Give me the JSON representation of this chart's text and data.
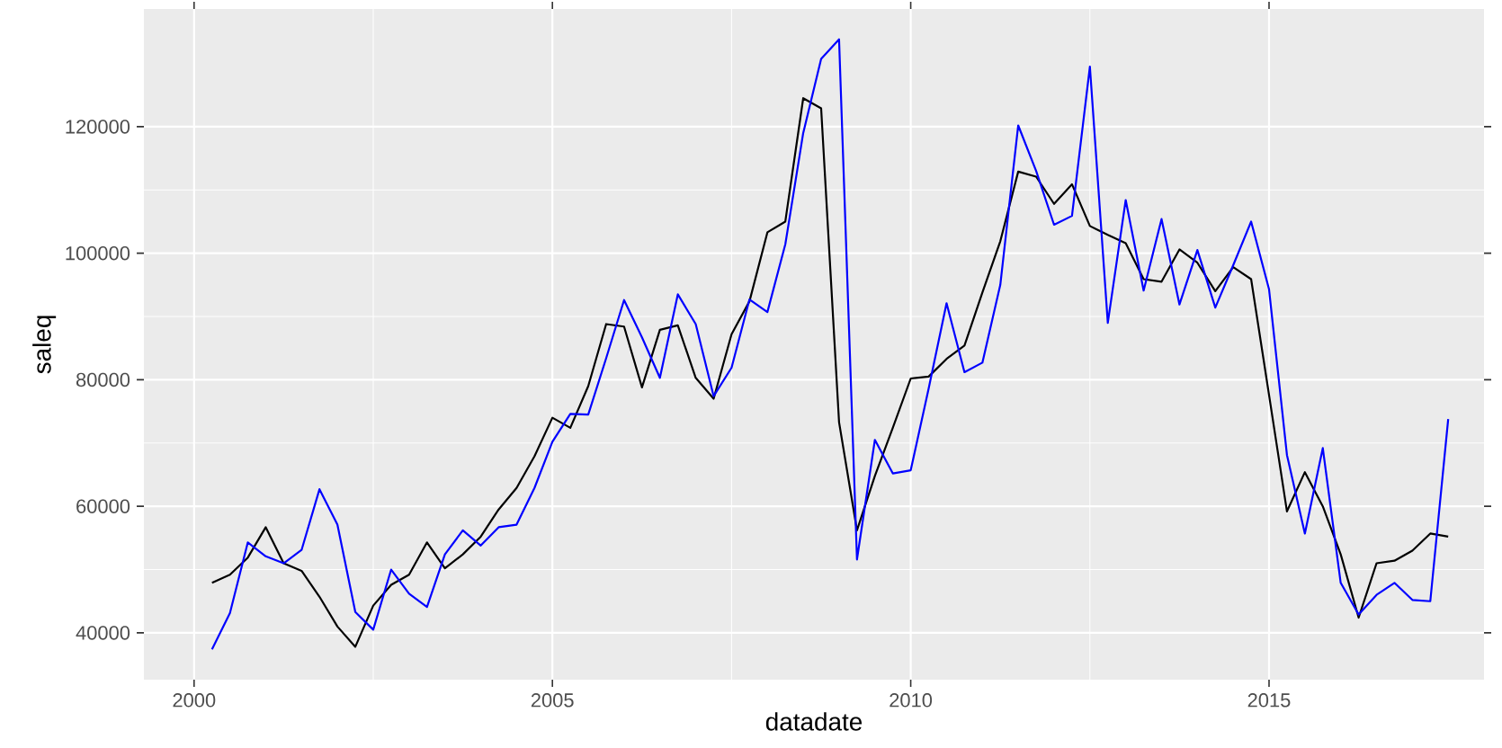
{
  "chart_data": {
    "type": "line",
    "xlabel": "datadate",
    "ylabel": "saleq",
    "x": [
      2000.25,
      2000.5,
      2000.75,
      2001,
      2001.25,
      2001.5,
      2001.75,
      2002,
      2002.25,
      2002.5,
      2002.75,
      2003,
      2003.25,
      2003.5,
      2003.75,
      2004,
      2004.25,
      2004.5,
      2004.75,
      2005,
      2005.25,
      2005.5,
      2005.75,
      2006,
      2006.25,
      2006.5,
      2006.75,
      2007,
      2007.25,
      2007.5,
      2007.75,
      2008,
      2008.25,
      2008.5,
      2008.75,
      2009,
      2009.25,
      2009.5,
      2009.75,
      2010,
      2010.25,
      2010.5,
      2010.75,
      2011,
      2011.25,
      2011.5,
      2011.75,
      2012,
      2012.25,
      2012.5,
      2012.75,
      2013,
      2013.25,
      2013.5,
      2013.75,
      2014,
      2014.25,
      2014.5,
      2014.75,
      2015,
      2015.25,
      2015.5,
      2015.75,
      2016,
      2016.25,
      2016.5,
      2016.75,
      2017,
      2017.25,
      2017.5
    ],
    "series": [
      {
        "color": "#000000",
        "values": [
          47900,
          49200,
          51900,
          56700,
          51000,
          49800,
          45700,
          41000,
          37800,
          44300,
          47600,
          49200,
          54300,
          50200,
          52400,
          55200,
          59500,
          62900,
          67900,
          74000,
          72400,
          79000,
          88800,
          88400,
          78800,
          87900,
          88600,
          80300,
          77000,
          87200,
          92400,
          103300,
          105000,
          124500,
          122900,
          73300,
          56200,
          64800,
          72400,
          80200,
          80500,
          83300,
          85400,
          93800,
          101900,
          112900,
          112100,
          107800,
          110900,
          104300,
          102900,
          101600,
          95900,
          95500,
          100600,
          98500,
          94000,
          97800,
          95900,
          77600,
          59200,
          65400,
          60000,
          52400,
          42400,
          51000,
          51400,
          53000,
          55700,
          55200
        ]
      },
      {
        "color": "#0000ff",
        "values": [
          37400,
          43100,
          54300,
          52100,
          51000,
          53100,
          62700,
          57100,
          43300,
          40500,
          50000,
          46200,
          44100,
          52400,
          56200,
          53800,
          56700,
          57100,
          62900,
          70200,
          74600,
          74500,
          83400,
          92600,
          86700,
          80300,
          93500,
          88800,
          77400,
          81900,
          92700,
          90700,
          101400,
          119000,
          130700,
          133800,
          51600,
          70500,
          65200,
          65700,
          78600,
          92100,
          81200,
          82700,
          95000,
          120200,
          113000,
          104500,
          105900,
          129500,
          89000,
          108400,
          94100,
          105400,
          91900,
          100500,
          91400,
          98100,
          105000,
          94300,
          68100,
          55700,
          69200,
          47900,
          42900,
          46000,
          47900,
          45200,
          45000,
          73800
        ]
      }
    ],
    "xlim": [
      1999.3,
      2018.0
    ],
    "ylim": [
      32600,
      138600
    ],
    "xticks": [
      2000,
      2005,
      2010,
      2015
    ],
    "yticks": [
      40000,
      60000,
      80000,
      100000,
      120000
    ],
    "grid": true,
    "line_style": "solid"
  }
}
